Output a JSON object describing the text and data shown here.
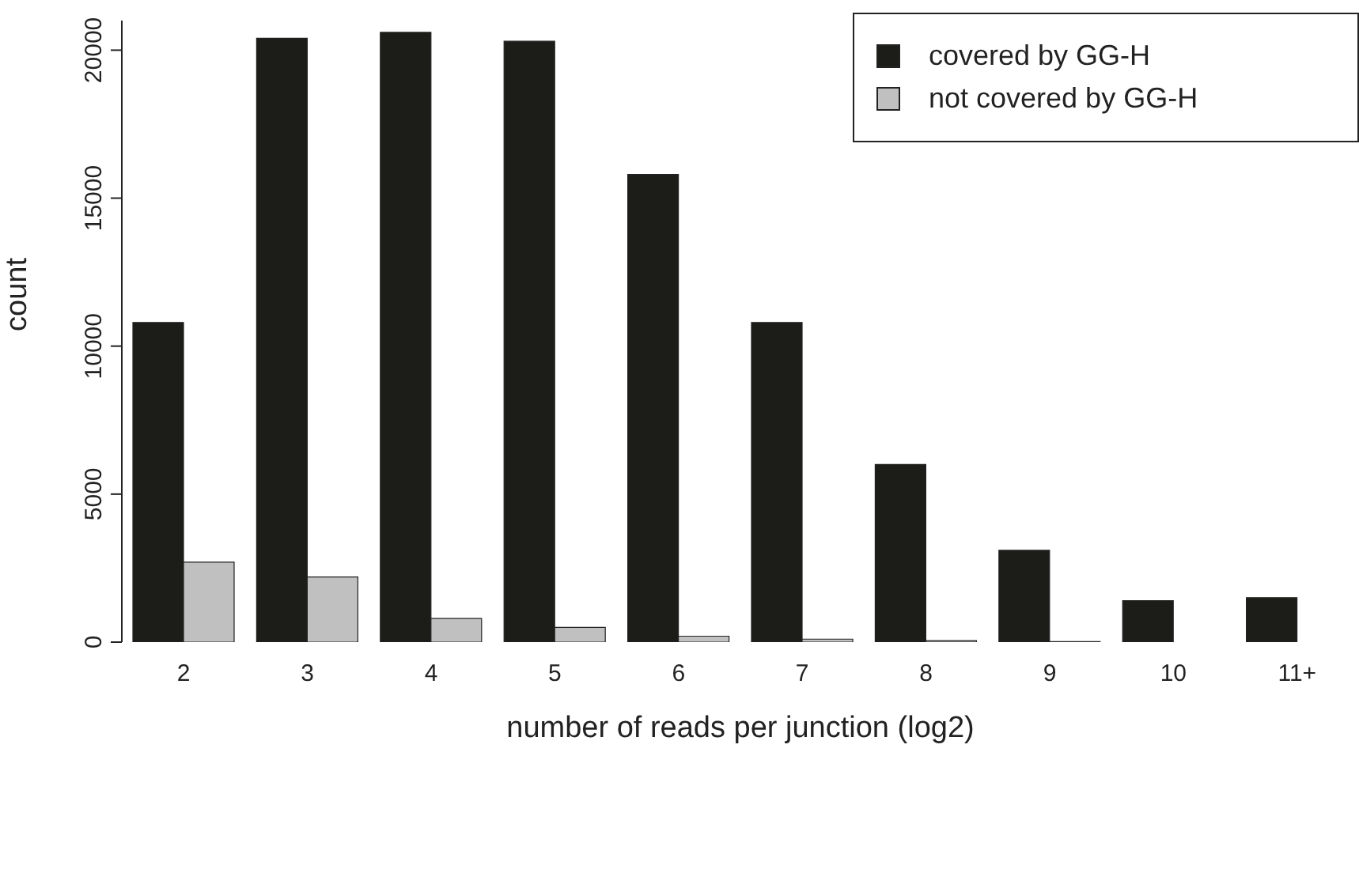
{
  "chart_data": {
    "type": "bar",
    "xlabel": "number of reads per junction (log2)",
    "ylabel": "count",
    "categories": [
      "2",
      "3",
      "4",
      "5",
      "6",
      "7",
      "8",
      "9",
      "10",
      "11+"
    ],
    "series": [
      {
        "name": "covered by GG-H",
        "color": "#1c1c18",
        "values": [
          10800,
          20400,
          20600,
          20300,
          15800,
          10800,
          6000,
          3100,
          1400,
          1500
        ]
      },
      {
        "name": "not covered by GG-H",
        "color": "#c0c0c0",
        "values": [
          2700,
          2200,
          800,
          500,
          200,
          100,
          50,
          20,
          null,
          null
        ]
      }
    ],
    "ylim": [
      0,
      21000
    ],
    "yticks": [
      0,
      5000,
      10000,
      15000,
      20000
    ],
    "grid": false,
    "legend": "top right"
  }
}
